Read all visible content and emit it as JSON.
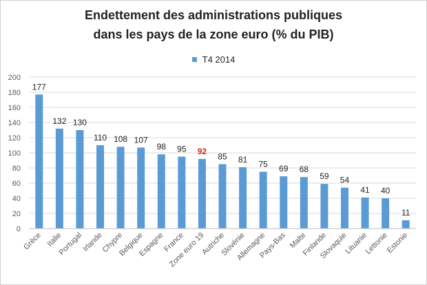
{
  "chart_data": {
    "type": "bar",
    "title_line1": "Endettement des administrations  publiques",
    "title_line2": "dans les pays de la zone euro (% du PIB)",
    "legend": [
      {
        "name": "T4 2014",
        "color": "#5b9bd5"
      }
    ],
    "xlabel": "",
    "ylabel": "",
    "ylim": [
      0,
      200
    ],
    "yticks": [
      0,
      20,
      40,
      60,
      80,
      100,
      120,
      140,
      160,
      180,
      200
    ],
    "grid": true,
    "categories": [
      "Grèce",
      "Italie",
      "Portugal",
      "Irlande",
      "Chypre",
      "Belgique",
      "Espagne",
      "France",
      "Zone euro 19",
      "Autriche",
      "Slovénie",
      "Allemagne",
      "Pays-Bas",
      "Malte",
      "Finlande",
      "Slovaquie",
      "Lituanie",
      "Lettonie",
      "Estonie"
    ],
    "series": [
      {
        "name": "T4 2014",
        "values": [
          177,
          132,
          130,
          110,
          108,
          107,
          98,
          95,
          92,
          85,
          81,
          75,
          69,
          68,
          59,
          54,
          41,
          40,
          11
        ]
      }
    ],
    "highlight": {
      "category": "Zone euro 19",
      "label_color": "#e02020"
    },
    "colors": {
      "bar": "#5b9bd5",
      "label": "#222222",
      "axis_text": "#595959",
      "grid": "#d9d9d9"
    }
  }
}
